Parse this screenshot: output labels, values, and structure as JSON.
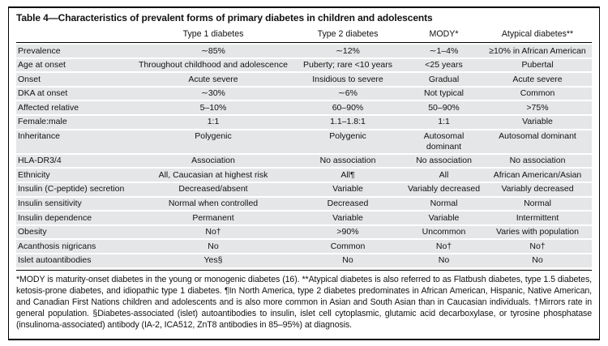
{
  "table": {
    "title": "Table 4—Characteristics of prevalent forms of primary diabetes in children and adolescents",
    "columns": [
      "",
      "Type 1 diabetes",
      "Type 2 diabetes",
      "MODY*",
      "Atypical diabetes**"
    ],
    "rows": [
      {
        "label": "Prevalence",
        "values": [
          "∼85%",
          "∼12%",
          "∼1–4%",
          "≥10% in African American"
        ]
      },
      {
        "label": "Age at onset",
        "values": [
          "Throughout childhood and adolescence",
          "Puberty; rare <10 years",
          "<25 years",
          "Pubertal"
        ]
      },
      {
        "label": "Onset",
        "values": [
          "Acute severe",
          "Insidious to severe",
          "Gradual",
          "Acute severe"
        ]
      },
      {
        "label": "DKA at onset",
        "values": [
          "∼30%",
          "∼6%",
          "Not typical",
          "Common"
        ]
      },
      {
        "label": "Affected relative",
        "values": [
          "5–10%",
          "60–90%",
          "50–90%",
          ">75%"
        ]
      },
      {
        "label": "Female:male",
        "values": [
          "1:1",
          "1.1–1.8:1",
          "1:1",
          "Variable"
        ]
      },
      {
        "label": "Inheritance",
        "values": [
          "Polygenic",
          "Polygenic",
          "Autosomal dominant",
          "Autosomal dominant"
        ]
      },
      {
        "label": "HLA-DR3/4",
        "values": [
          "Association",
          "No association",
          "No association",
          "No association"
        ]
      },
      {
        "label": "Ethnicity",
        "values": [
          "All, Caucasian at highest risk",
          "All¶",
          "All",
          "African American/Asian"
        ]
      },
      {
        "label": "Insulin (C-peptide) secretion",
        "values": [
          "Decreased/absent",
          "Variable",
          "Variably decreased",
          "Variably decreased"
        ]
      },
      {
        "label": "Insulin sensitivity",
        "values": [
          "Normal when controlled",
          "Decreased",
          "Normal",
          "Normal"
        ]
      },
      {
        "label": "Insulin dependence",
        "values": [
          "Permanent",
          "Variable",
          "Variable",
          "Intermittent"
        ]
      },
      {
        "label": "Obesity",
        "values": [
          "No†",
          ">90%",
          "Uncommon",
          "Varies with population"
        ]
      },
      {
        "label": "Acanthosis nigricans",
        "values": [
          "No",
          "Common",
          "No†",
          "No†"
        ]
      },
      {
        "label": "Islet autoantibodies",
        "values": [
          "Yes§",
          "No",
          "No",
          "No"
        ]
      }
    ],
    "footnote": "*MODY is maturity-onset diabetes in the young or monogenic diabetes (16). **Atypical diabetes is also referred to as Flatbush diabetes, type 1.5 diabetes, ketosis-prone diabetes, and idiopathic type 1 diabetes. ¶In North America, type 2 diabetes predominates in African American, Hispanic, Native American, and Canadian First Nations children and adolescents and is also more common in Asian and South Asian than in Caucasian individuals. †Mirrors rate in general population. §Diabetes-associated (islet) autoantibodies to insulin, islet cell cytoplasmic, glutamic acid decarboxylase, or tyrosine phosphatase (insulinoma-associated) antibody (IA-2, ICA512, ZnT8 antibodies in 85–95%) at diagnosis.",
    "colors": {
      "row_bg": "#e5e6e7",
      "border": "#000000",
      "text": "#121212",
      "page_bg": "#ffffff"
    }
  }
}
